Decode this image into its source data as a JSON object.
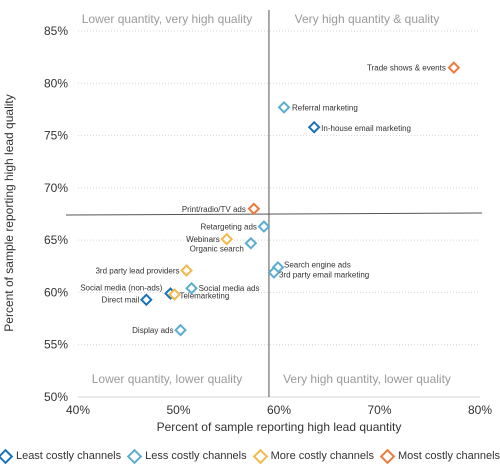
{
  "chart_data": {
    "type": "scatter",
    "xlabel": "Percent of sample reporting high lead quantity",
    "ylabel": "Percent of sample reporting high lead quality",
    "xlim": [
      40,
      80
    ],
    "ylim": [
      50,
      85
    ],
    "x_ticks": [
      40,
      50,
      60,
      70,
      80
    ],
    "y_ticks": [
      50,
      55,
      60,
      65,
      70,
      75,
      80,
      85
    ],
    "tick_suffix": "%",
    "grid": "horizontal dotted",
    "legend_position": "bottom",
    "quadrant_lines": {
      "x": 59,
      "y": 67.5
    },
    "quadrants": {
      "top_left": "Lower quantity, very high quality",
      "top_right": "Very high quantity & quality",
      "bottom_left": "Lower quantity, lower quality",
      "bottom_right": "Very high quantity, lower quality"
    },
    "series": [
      {
        "name": "Least costly channels",
        "color": "#1a73b8",
        "points": [
          {
            "label": "In-house email marketing",
            "x": 63.5,
            "y": 75.8
          },
          {
            "label": "Social media (non-ads)",
            "x": 49.2,
            "y": 59.9
          },
          {
            "label": "Direct mail",
            "x": 46.8,
            "y": 59.3
          }
        ]
      },
      {
        "name": "Less costly channels",
        "color": "#5aaecf",
        "points": [
          {
            "label": "Referral marketing",
            "x": 60.5,
            "y": 77.7
          },
          {
            "label": "Retargeting ads",
            "x": 58.5,
            "y": 66.3
          },
          {
            "label": "Organic search",
            "x": 57.2,
            "y": 64.7
          },
          {
            "label": "Search engine ads",
            "x": 59.9,
            "y": 62.4
          },
          {
            "label": "3rd party email marketing",
            "x": 59.5,
            "y": 61.9
          },
          {
            "label": "Social media ads",
            "x": 51.3,
            "y": 60.4
          },
          {
            "label": "Display ads",
            "x": 50.2,
            "y": 56.4
          }
        ]
      },
      {
        "name": "More costly channels",
        "color": "#f2b84b",
        "points": [
          {
            "label": "Webinars",
            "x": 54.8,
            "y": 65.1
          },
          {
            "label": "3rd party lead providers",
            "x": 50.8,
            "y": 62.1
          },
          {
            "label": "Telemarketing",
            "x": 49.6,
            "y": 59.8
          }
        ]
      },
      {
        "name": "Most costly channels",
        "color": "#ee7a3a",
        "points": [
          {
            "label": "Trade shows & events",
            "x": 77.4,
            "y": 81.5
          },
          {
            "label": "Print/radio/TV ads",
            "x": 57.5,
            "y": 68.0
          }
        ]
      }
    ]
  }
}
